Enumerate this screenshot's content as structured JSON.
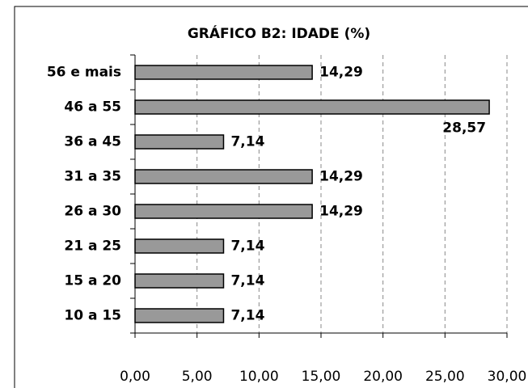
{
  "chart_data": {
    "type": "barh",
    "title": "GRÁFICO B2: IDADE (%)",
    "categories": [
      "56 e mais",
      "46 a 55",
      "36 a 45",
      "31 a 35",
      "26 a 30",
      "21 a 25",
      "15 a 20",
      "10 a 15"
    ],
    "values": [
      14.29,
      28.57,
      7.14,
      14.29,
      14.29,
      7.14,
      7.14,
      7.14
    ],
    "value_labels": [
      "14,29",
      "28,57",
      "7,14",
      "14,29",
      "14,29",
      "7,14",
      "7,14",
      "7,14"
    ],
    "color": "#999999",
    "xlim": [
      0,
      30
    ],
    "xticks": [
      {
        "value": 0,
        "label": "0,00"
      },
      {
        "value": 5,
        "label": "5,00"
      },
      {
        "value": 10,
        "label": "10,00"
      },
      {
        "value": 15,
        "label": "15,00"
      },
      {
        "value": 20,
        "label": "20,00"
      },
      {
        "value": 25,
        "label": "25,00"
      },
      {
        "value": 30,
        "label": "30,00"
      }
    ],
    "grid": true
  }
}
